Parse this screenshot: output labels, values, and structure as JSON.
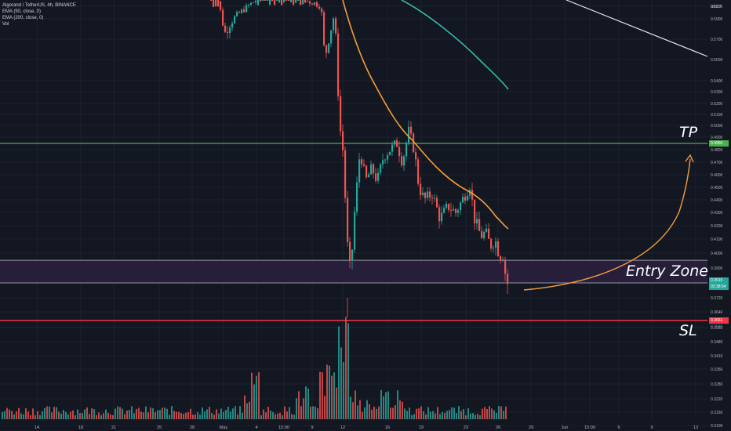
{
  "legend": {
    "symbol": "Algorand / TetherUS, 4h, BINANCE",
    "ema50": "EMA (50, close, 0)",
    "ema200": "EMA (200, close, 0)",
    "vol": "Vol"
  },
  "annotations": {
    "tp": "TP",
    "entry": "Entry Zone",
    "sl": "SL"
  },
  "colors": {
    "background": "#131722",
    "up": "#26a69a",
    "down": "#ef5350",
    "ema50": "#f59c3c",
    "ema200": "#38b6a7",
    "tp_line": "#4caf50",
    "sl_line": "#f23645",
    "entry_zone": "#2a1f3d",
    "arrow": "#f59c3c"
  },
  "price_tags": {
    "tp": "0.4950",
    "entry": "0.3915",
    "entry_timer": "02:38:54",
    "sl": "0.3661",
    "sl_below": "0.3640"
  },
  "chart_data": {
    "type": "candlestick",
    "title": "Algorand / TetherUS, 4h, BINANCE",
    "quote_unit": "USDT",
    "x_ticks": [
      "14",
      "18",
      "21",
      "25",
      "28",
      "May",
      "4",
      "15:00",
      "9",
      "12",
      "16",
      "19",
      "23",
      "26",
      "29",
      "Jun",
      "15:00",
      "6",
      "9",
      "13"
    ],
    "y_ticks": [
      "0.6100",
      "0.5900",
      "0.5700",
      "0.5500",
      "0.5400",
      "0.5300",
      "0.5200",
      "0.5100",
      "0.5000",
      "0.4900",
      "0.4800",
      "0.4700",
      "0.4600",
      "0.4500",
      "0.4400",
      "0.4300",
      "0.4200",
      "0.4100",
      "0.4000",
      "0.3900",
      "0.3800",
      "0.3720",
      "0.3640",
      "0.3560",
      "0.3480",
      "0.3410",
      "0.3350",
      "0.3280",
      "0.3220",
      "0.3160",
      "0.3100"
    ],
    "levels": {
      "take_profit": 0.495,
      "entry_upper": 0.3915,
      "entry_lower": 0.38,
      "stop_loss": 0.3661
    },
    "series": [
      {
        "name": "EMA (50, close, 0)"
      },
      {
        "name": "EMA (200, close, 0)"
      },
      {
        "name": "Vol"
      }
    ]
  }
}
